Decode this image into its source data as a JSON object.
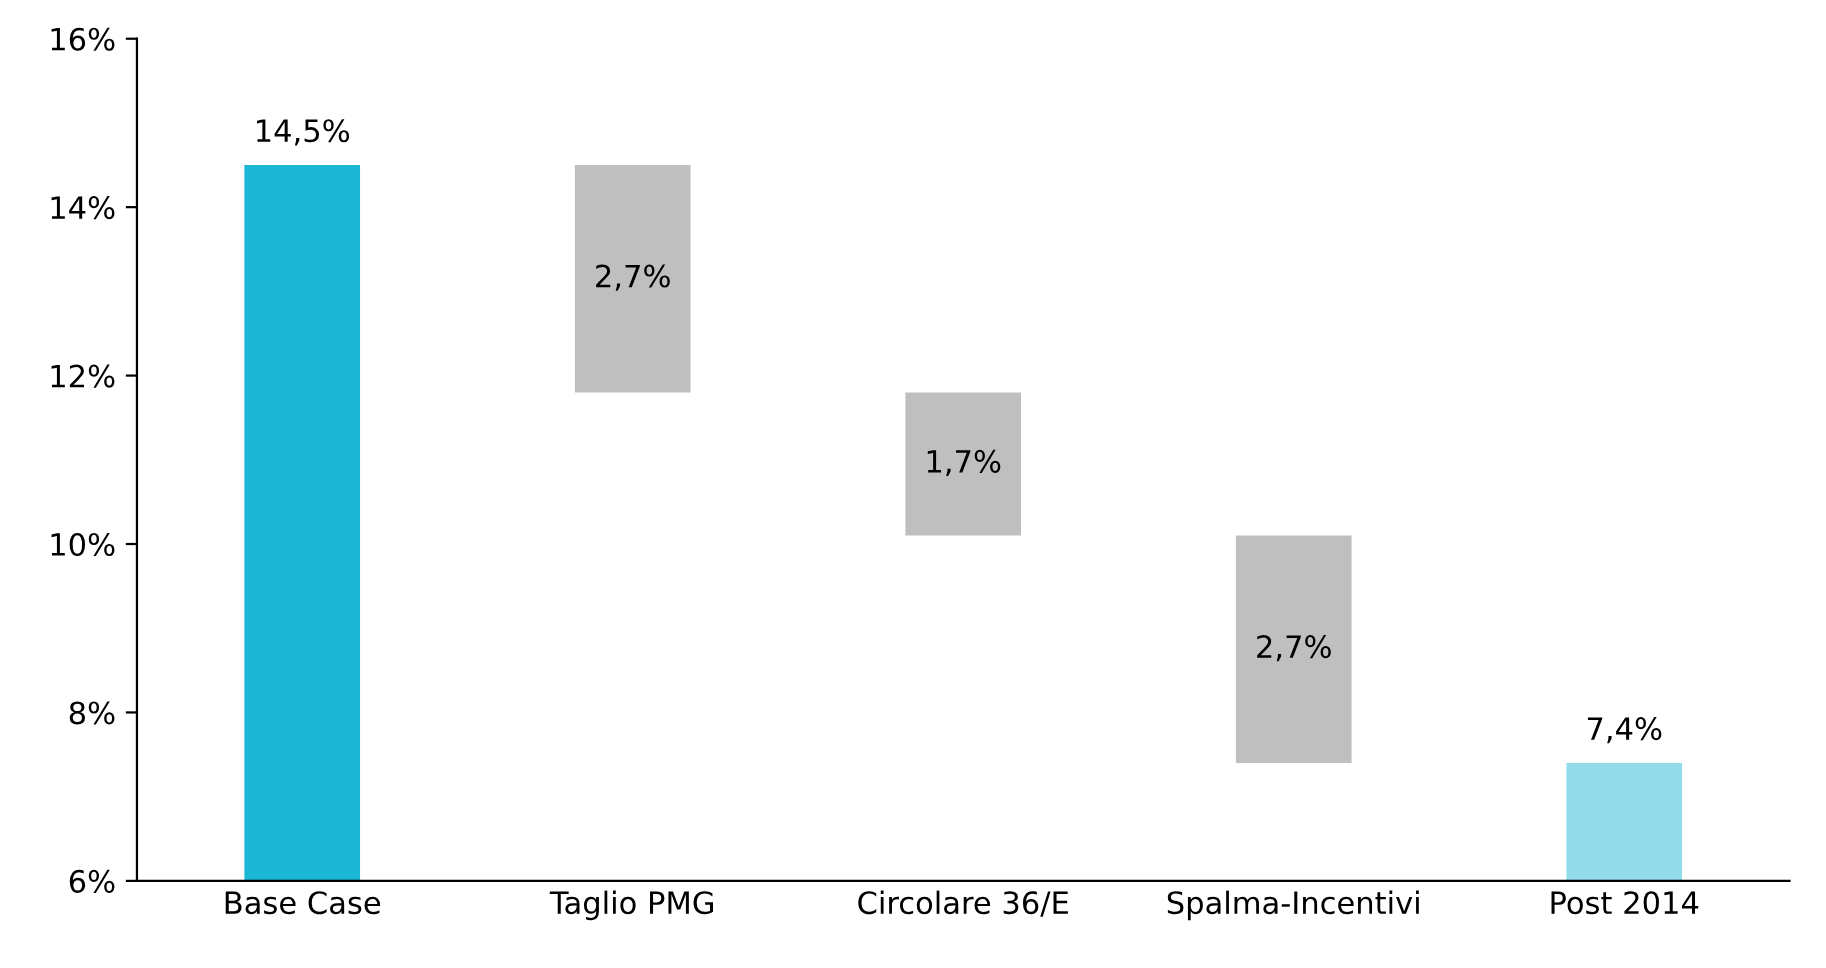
{
  "chart_data": {
    "type": "bar",
    "categories": [
      "Base Case",
      "Taglio PMG",
      "Circolare 36/E",
      "Spalma-Incentivi",
      "Post 2014"
    ],
    "values": [
      14.5,
      2.7,
      1.7,
      2.7,
      7.4
    ],
    "base": [
      null,
      11.8,
      10.1,
      7.4,
      null
    ],
    "colors": [
      "#1cb6d6",
      "#bfbfbf",
      "#bfbfbf",
      "#bfbfbf",
      "#92dbeb"
    ],
    "value_labels": [
      "14,5%",
      "2,7%",
      "1,7%",
      "2,7%",
      "7,4%"
    ],
    "ylim": [
      6,
      16
    ],
    "yticks": [
      {
        "value": 6,
        "label": "6%"
      },
      {
        "value": 8,
        "label": "8%"
      },
      {
        "value": 10,
        "label": "10%"
      },
      {
        "value": 12,
        "label": "12%"
      },
      {
        "value": 14,
        "label": "14%"
      },
      {
        "value": 16,
        "label": "16%"
      }
    ],
    "grid": false
  }
}
